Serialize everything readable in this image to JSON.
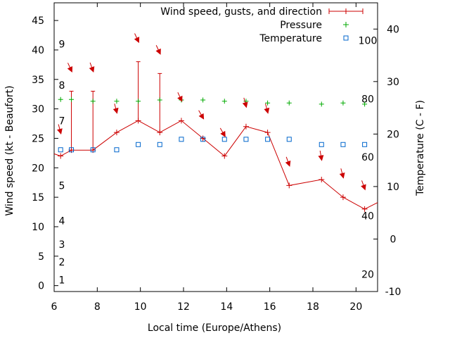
{
  "chart_data": {
    "type": "line",
    "title": "",
    "xlabel": "Local time (Europe/Athens)",
    "ylabel": "Wind speed (kt - Beaufort)",
    "y2label": "Temperature (C - F)",
    "xlim": [
      6,
      21
    ],
    "ylim": [
      -1,
      48
    ],
    "y2lim": [
      -10,
      45
    ],
    "x_ticks": [
      "6",
      "8",
      "10",
      "12",
      "14",
      "16",
      "18",
      "20"
    ],
    "y_ticks": [
      "0",
      "5",
      "10",
      "15",
      "20",
      "25",
      "30",
      "35",
      "40",
      "45"
    ],
    "y2_ticks": [
      "-10",
      "0",
      "10",
      "20",
      "30",
      "40"
    ],
    "beaufort_labels": [
      {
        "text": "1",
        "y": 1
      },
      {
        "text": "2",
        "y": 4
      },
      {
        "text": "3",
        "y": 7
      },
      {
        "text": "4",
        "y": 11
      },
      {
        "text": "5",
        "y": 17
      },
      {
        "text": "7",
        "y": 28
      },
      {
        "text": "8",
        "y": 34
      },
      {
        "text": "9",
        "y": 41
      }
    ],
    "fahrenheit_labels": [
      {
        "text": "20",
        "celsius": -6.7
      },
      {
        "text": "40",
        "celsius": 4.4
      },
      {
        "text": "60",
        "celsius": 15.6
      },
      {
        "text": "80",
        "celsius": 26.7
      },
      {
        "text": "100",
        "celsius": 37.8
      }
    ],
    "grid": false,
    "legend_position": "top-right",
    "colors": {
      "wind": "#cc0000",
      "arrows": "#cc0000",
      "pressure": "#00aa00",
      "temperature": "#0066cc"
    },
    "series": [
      {
        "name": "Wind speed, gusts, and direction",
        "axis": "left",
        "x": [
          5.5,
          6.3,
          6.8,
          7.8,
          8.9,
          9.9,
          10.9,
          11.9,
          12.9,
          13.9,
          14.9,
          15.9,
          16.9,
          18.4,
          19.4,
          20.4,
          21.5
        ],
        "values": [
          23,
          22,
          23,
          23,
          26,
          28,
          26,
          28,
          25,
          22,
          27,
          26,
          17,
          18,
          15,
          13,
          15
        ],
        "gust_tops": [
          null,
          null,
          33,
          33,
          null,
          38,
          36,
          null,
          null,
          null,
          null,
          null,
          null,
          null,
          null,
          null,
          null
        ]
      },
      {
        "name": "Pressure",
        "axis": "left",
        "x": [
          6.3,
          6.8,
          7.8,
          8.9,
          9.9,
          10.9,
          11.9,
          12.9,
          13.9,
          14.9,
          15.9,
          16.9,
          18.4,
          19.4,
          20.4
        ],
        "values": [
          31.6,
          31.6,
          31.3,
          31.3,
          31.3,
          31.5,
          31.5,
          31.5,
          31.3,
          31.3,
          31.0,
          31.0,
          30.8,
          31.0,
          30.8
        ]
      },
      {
        "name": "Temperature",
        "axis": "right",
        "x": [
          6.3,
          6.8,
          7.8,
          8.9,
          9.9,
          10.9,
          11.9,
          12.9,
          13.9,
          14.9,
          15.9,
          16.9,
          18.4,
          19.4,
          20.4
        ],
        "values": [
          17,
          17,
          17,
          17,
          18,
          18,
          19,
          19,
          19,
          19,
          19,
          19,
          18,
          18,
          18
        ]
      }
    ],
    "direction_arrows": {
      "x": [
        6.3,
        6.8,
        7.8,
        8.9,
        9.9,
        10.9,
        11.9,
        12.9,
        13.9,
        14.9,
        15.9,
        16.9,
        18.4,
        19.4,
        20.4
      ],
      "y": [
        26,
        36.5,
        36.5,
        29.5,
        41.5,
        39.5,
        31.5,
        28.5,
        25.5,
        30.5,
        29.5,
        20.5,
        21.5,
        18.5,
        16.5
      ],
      "angle": [
        15,
        25,
        20,
        15,
        25,
        25,
        25,
        30,
        30,
        15,
        15,
        20,
        10,
        15,
        20
      ]
    }
  }
}
